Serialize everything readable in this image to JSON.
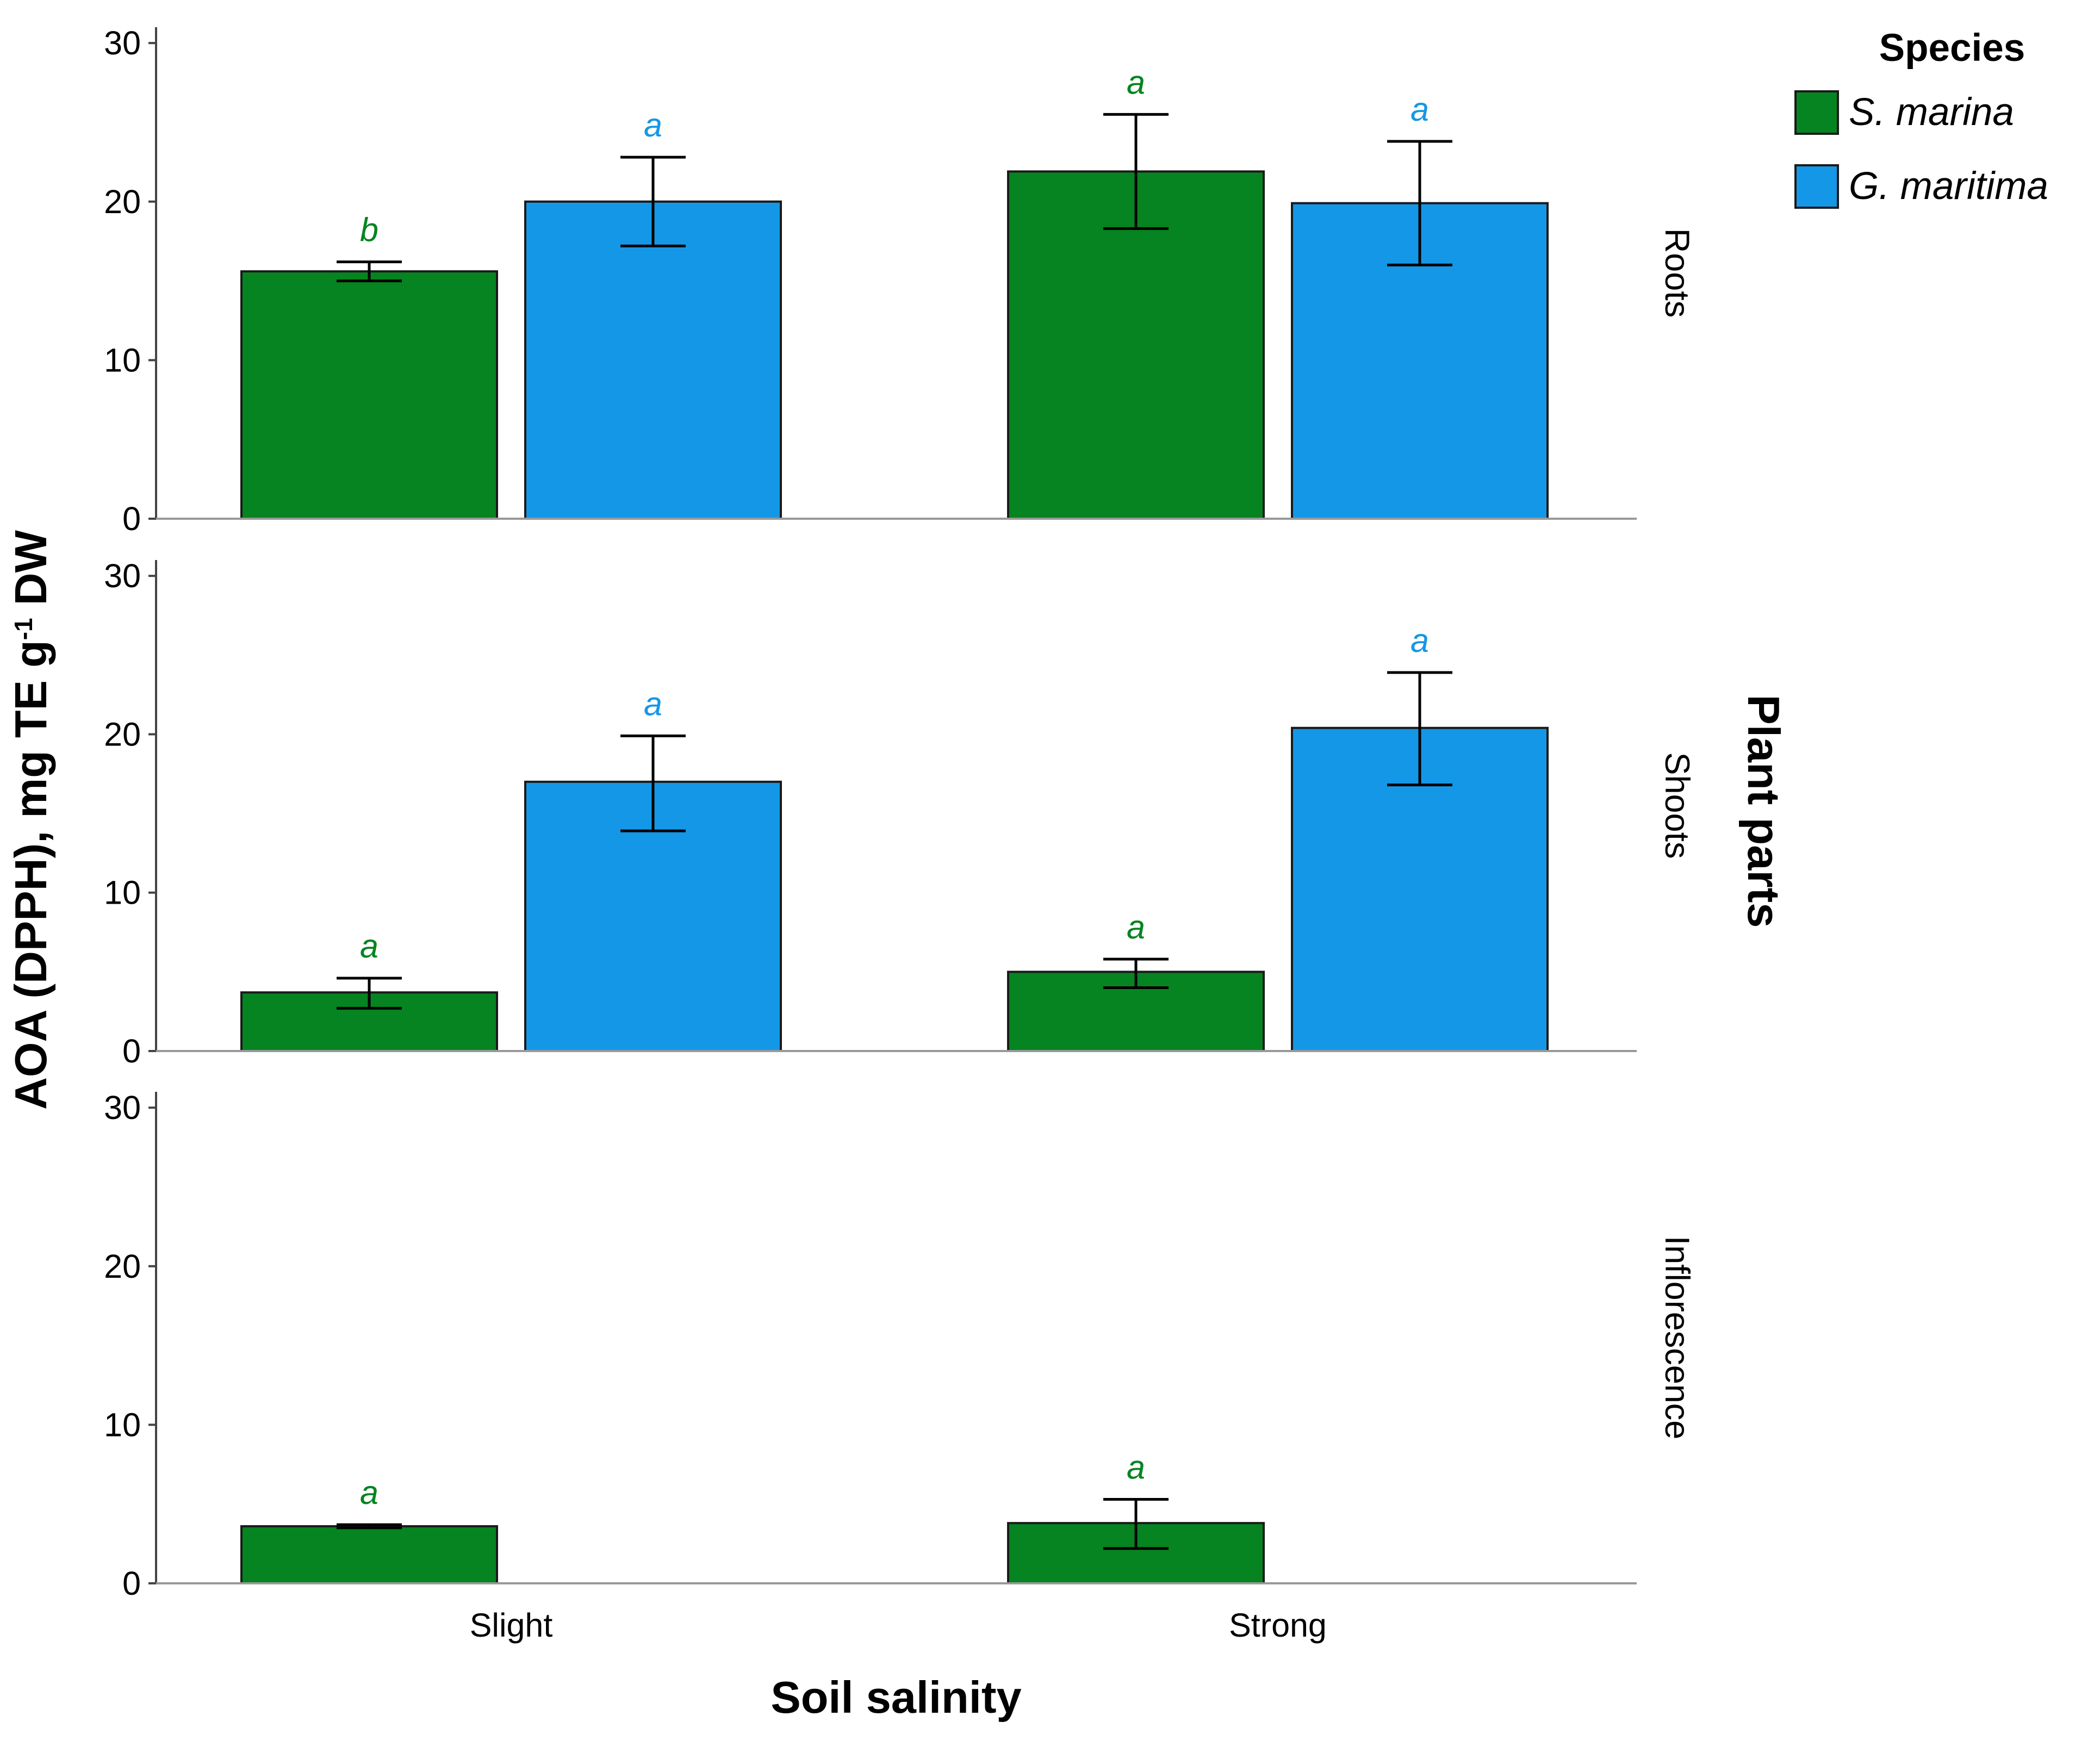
{
  "chart_data": {
    "type": "bar",
    "xlabel": "Soil salinity",
    "ylabel": "AOA (DPPH), mg TE g-1 DW",
    "facet_title": "Plant parts",
    "ylim": [
      0,
      31
    ],
    "yticks": [
      0,
      10,
      20,
      30
    ],
    "grid": false,
    "legend_position": "top-right",
    "legend": {
      "title": "Species",
      "entries": [
        {
          "label": "S. marina",
          "color": "#058421"
        },
        {
          "label": "G. maritima",
          "color": "#1597E7"
        }
      ]
    },
    "categories": [
      "Slight",
      "Strong"
    ],
    "facets": [
      {
        "name": "Roots",
        "series": [
          {
            "name": "S. marina",
            "values": [
              15.6,
              21.9
            ],
            "err_low": [
              15.0,
              18.3
            ],
            "err_high": [
              16.2,
              25.5
            ],
            "letters": [
              "b",
              "a"
            ]
          },
          {
            "name": "G. maritima",
            "values": [
              20.0,
              19.9
            ],
            "err_low": [
              17.2,
              16.0
            ],
            "err_high": [
              22.8,
              23.8
            ],
            "letters": [
              "a",
              "a"
            ]
          }
        ]
      },
      {
        "name": "Shoots",
        "series": [
          {
            "name": "S. marina",
            "values": [
              3.7,
              5.0
            ],
            "err_low": [
              2.7,
              4.0
            ],
            "err_high": [
              4.6,
              5.8
            ],
            "letters": [
              "a",
              "a"
            ]
          },
          {
            "name": "G. maritima",
            "values": [
              17.0,
              20.4
            ],
            "err_low": [
              13.9,
              16.8
            ],
            "err_high": [
              19.9,
              23.9
            ],
            "letters": [
              "a",
              "a"
            ]
          }
        ]
      },
      {
        "name": "Inflorescence",
        "series": [
          {
            "name": "S. marina",
            "values": [
              3.6,
              3.8
            ],
            "err_low": [
              3.5,
              2.2
            ],
            "err_high": [
              3.7,
              5.3
            ],
            "letters": [
              "a",
              "a"
            ]
          }
        ]
      }
    ]
  }
}
